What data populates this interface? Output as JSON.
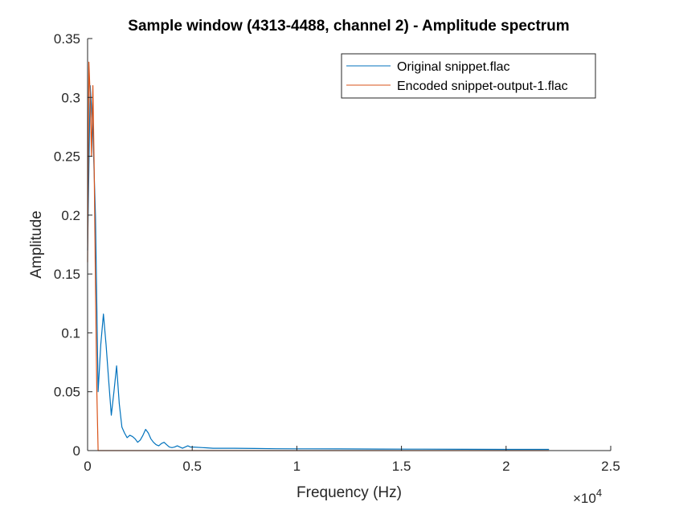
{
  "chart_data": {
    "type": "line",
    "title": "Sample window (4313-4488, channel 2) - Amplitude spectrum",
    "xlabel": "Frequency (Hz)",
    "ylabel": "Amplitude",
    "xlim": [
      0,
      25000
    ],
    "ylim": [
      0,
      0.35
    ],
    "x_ticks": [
      0,
      5000,
      10000,
      15000,
      20000,
      25000
    ],
    "x_tick_labels": [
      "0",
      "0.5",
      "1",
      "1.5",
      "2",
      "2.5"
    ],
    "x_exponent_label": "×10",
    "x_exponent_power": "4",
    "y_ticks": [
      0,
      0.05,
      0.1,
      0.15,
      0.2,
      0.25,
      0.3,
      0.35
    ],
    "y_tick_labels": [
      "0",
      "0.05",
      "0.1",
      "0.15",
      "0.2",
      "0.25",
      "0.3",
      "0.35"
    ],
    "grid": false,
    "legend_position": "top-right",
    "series": [
      {
        "name": "Original snippet.flac",
        "color": "#0072BD",
        "x": [
          0,
          126,
          252,
          378,
          504,
          630,
          756,
          882,
          1008,
          1134,
          1260,
          1386,
          1512,
          1638,
          1764,
          1890,
          2016,
          2142,
          2268,
          2394,
          2520,
          2646,
          2772,
          2898,
          3024,
          3150,
          3276,
          3402,
          3528,
          3654,
          3780,
          3906,
          4032,
          4158,
          4284,
          4410,
          4536,
          4662,
          4788,
          4914,
          5040,
          5500,
          6000,
          7000,
          8000,
          9000,
          10000,
          12000,
          14000,
          16000,
          18000,
          20000,
          22050
        ],
        "y": [
          0.17,
          0.31,
          0.27,
          0.2,
          0.05,
          0.09,
          0.116,
          0.09,
          0.06,
          0.03,
          0.05,
          0.072,
          0.04,
          0.02,
          0.015,
          0.011,
          0.013,
          0.012,
          0.01,
          0.007,
          0.009,
          0.013,
          0.018,
          0.015,
          0.01,
          0.007,
          0.005,
          0.004,
          0.006,
          0.007,
          0.005,
          0.003,
          0.0025,
          0.003,
          0.004,
          0.003,
          0.002,
          0.003,
          0.004,
          0.003,
          0.003,
          0.0025,
          0.002,
          0.002,
          0.0018,
          0.0016,
          0.0015,
          0.0014,
          0.0013,
          0.0012,
          0.0011,
          0.001,
          0.001
        ]
      },
      {
        "name": "Encoded snippet-output-1.flac",
        "color": "#D95319",
        "x": [
          0,
          63,
          126,
          189,
          252,
          315,
          378,
          441,
          504,
          567,
          630,
          1000,
          5000,
          10000,
          15000,
          20000,
          22050
        ],
        "y": [
          0.16,
          0.33,
          0.3,
          0.25,
          0.31,
          0.24,
          0.14,
          0.05,
          0.0,
          0.0,
          0.0,
          0.0,
          0.0,
          0.0,
          0.0,
          0.0,
          0.0
        ]
      }
    ]
  }
}
